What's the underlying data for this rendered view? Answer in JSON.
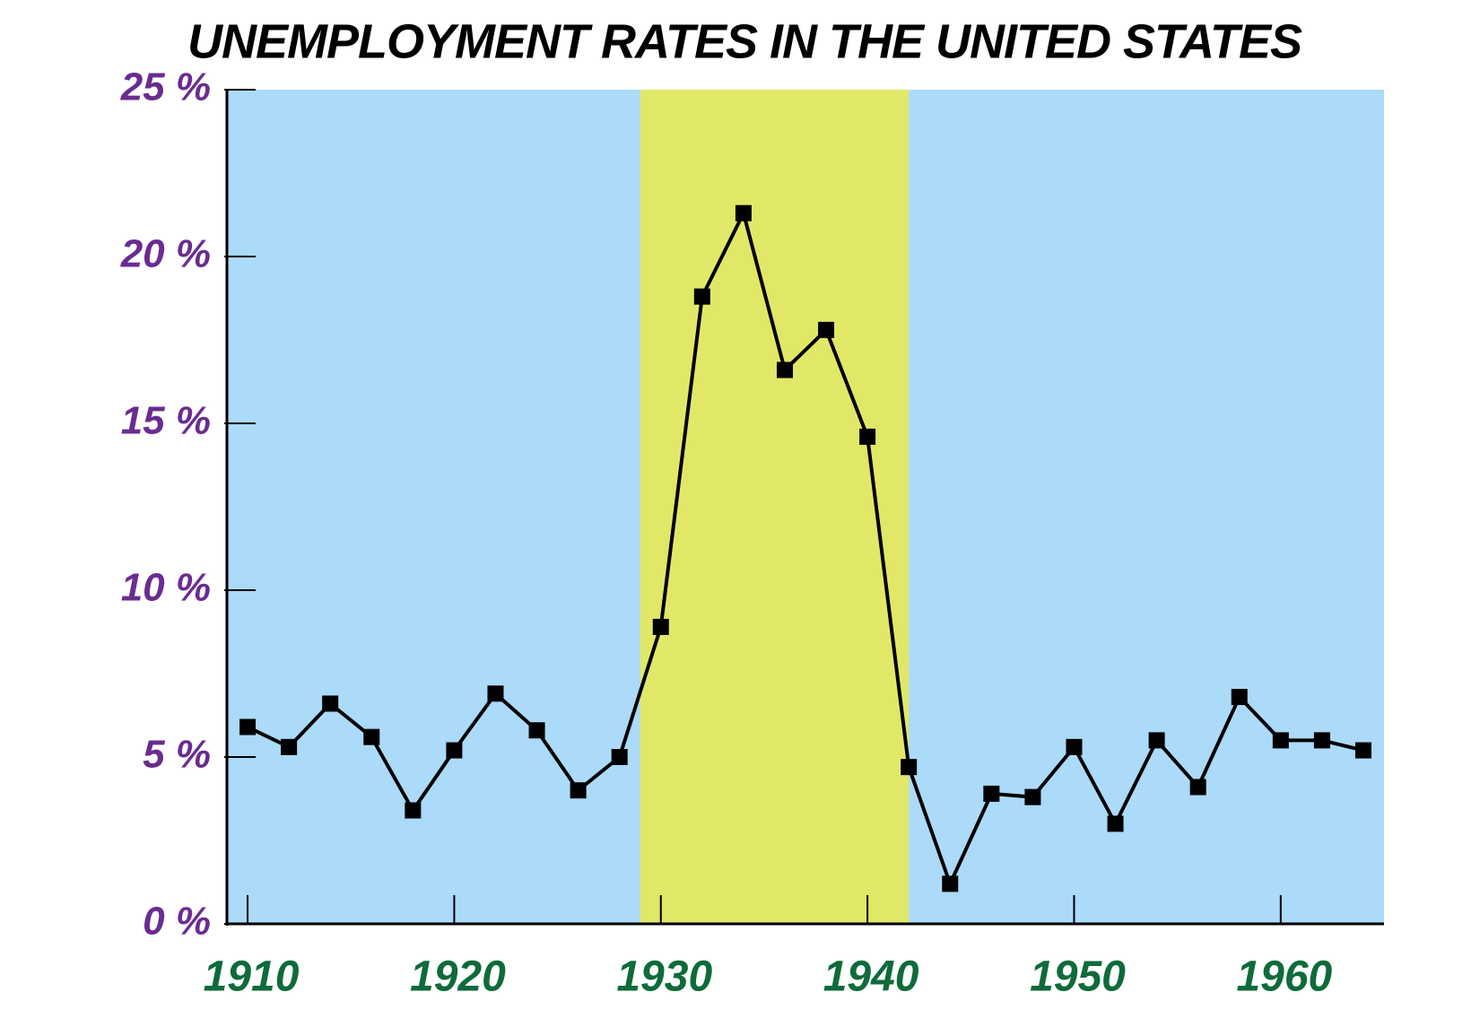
{
  "chart_data": {
    "type": "line",
    "title": "UNEMPLOYMENT RATES IN THE UNITED STATES",
    "x": [
      1910,
      1912,
      1914,
      1916,
      1918,
      1920,
      1922,
      1924,
      1926,
      1928,
      1930,
      1932,
      1934,
      1936,
      1938,
      1940,
      1942,
      1944,
      1946,
      1948,
      1950,
      1952,
      1954,
      1956,
      1958,
      1960,
      1962,
      1964
    ],
    "series": [
      {
        "color": "#000000",
        "values": [
          5.9,
          5.3,
          6.6,
          5.6,
          3.4,
          5.2,
          6.9,
          5.8,
          4.0,
          5.0,
          8.9,
          18.8,
          21.3,
          16.6,
          17.8,
          14.6,
          4.7,
          1.2,
          3.9,
          3.8,
          5.3,
          3.0,
          5.5,
          4.1,
          6.8,
          5.5,
          5.5,
          5.2
        ]
      }
    ],
    "xlim": [
      1909,
      1965
    ],
    "xticks": [
      1910,
      1920,
      1930,
      1940,
      1950,
      1960
    ],
    "ylim": [
      0,
      25
    ],
    "yticks": [
      {
        "value": 0,
        "label": "0 %"
      },
      {
        "value": 5,
        "label": "5 %"
      },
      {
        "value": 10,
        "label": "10 %"
      },
      {
        "value": 15,
        "label": "15 %"
      },
      {
        "value": 20,
        "label": "20 %"
      },
      {
        "value": 25,
        "label": "25 %"
      }
    ],
    "background_color": "#acdaf9",
    "shaded_range": {
      "x": [
        1929,
        1942
      ],
      "color": "#e1e868"
    }
  }
}
